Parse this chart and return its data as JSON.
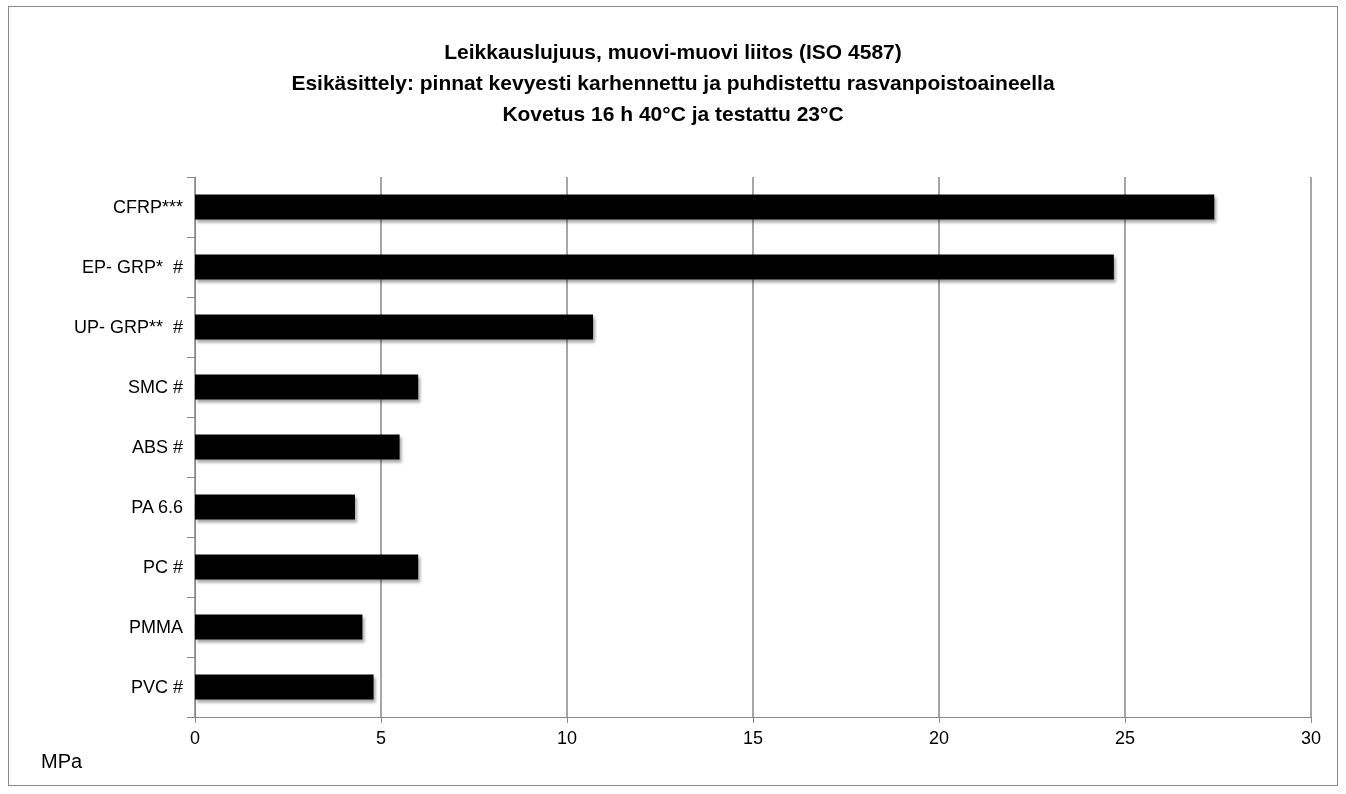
{
  "chart_data": {
    "type": "bar",
    "orientation": "horizontal",
    "title": "Leikkauslujuus, muovi-muovi liitos (ISO 4587)\nEsikäsittely: pinnat kevyesti karhennettu ja puhdistettu rasvanpoistoaineella\nKovetus 16 h 40°C ja testattu 23°C",
    "categories": [
      "CFRP***",
      "EP- GRP*  #",
      "UP- GRP**  #",
      "SMC #",
      "ABS #",
      "PA 6.6",
      "PC #",
      "PMMA",
      "PVC #"
    ],
    "values": [
      27.4,
      24.7,
      10.7,
      6.0,
      5.5,
      4.3,
      6.0,
      4.5,
      4.8
    ],
    "color": "#000000",
    "xlabel": "MPa",
    "xlim": [
      0,
      30
    ],
    "xticks": [
      0,
      5,
      10,
      15,
      20,
      25,
      30
    ],
    "grid": "x"
  }
}
